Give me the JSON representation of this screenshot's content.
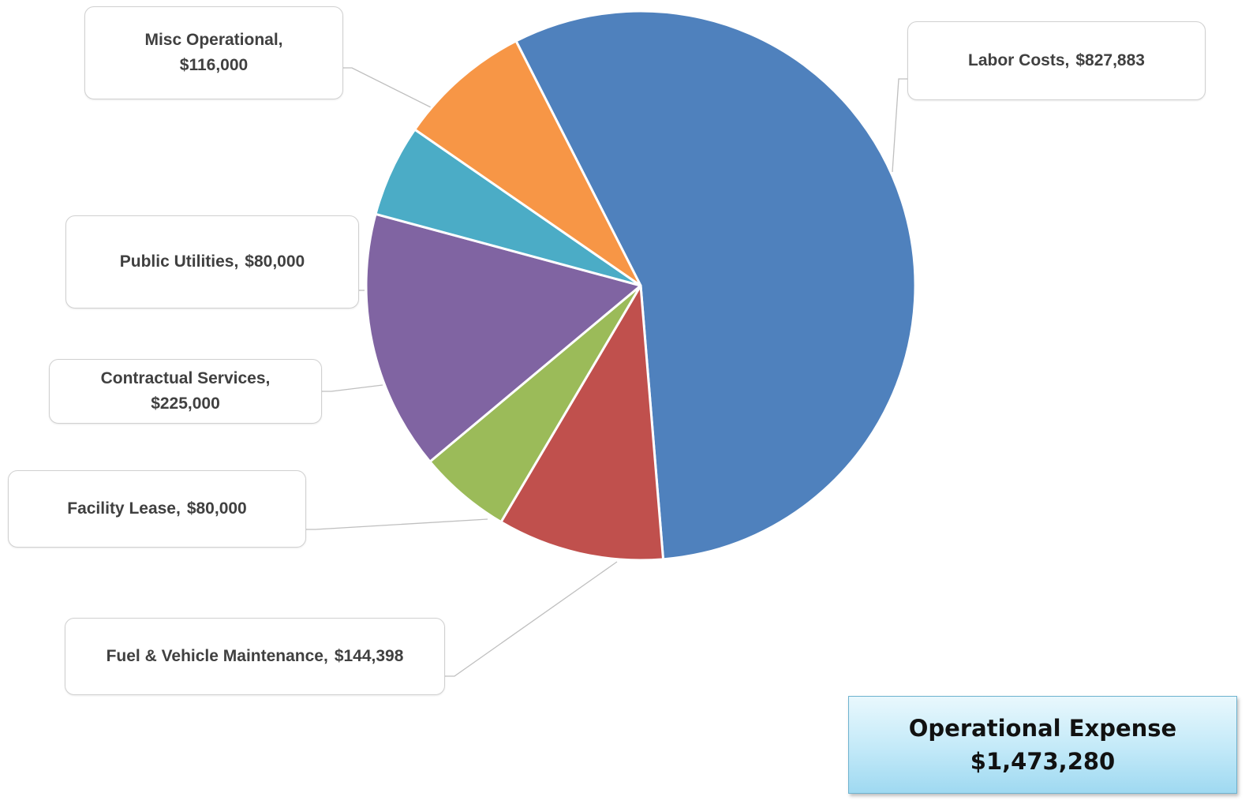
{
  "chart_data": {
    "type": "pie",
    "title": "",
    "slices": [
      {
        "label": "Labor Costs",
        "value": 827883,
        "display": "$827,883",
        "color": "#4f81bd"
      },
      {
        "label": "Fuel & Vehicle Maintenance",
        "value": 144398,
        "display": "$144,398",
        "color": "#c0504d"
      },
      {
        "label": "Facility Lease",
        "value": 80000,
        "display": "$80,000",
        "color": "#9bbb59"
      },
      {
        "label": "Contractual Services",
        "value": 225000,
        "display": "$225,000",
        "color": "#8064a2"
      },
      {
        "label": "Public Utilities",
        "value": 80000,
        "display": "$80,000",
        "color": "#4bacc6"
      },
      {
        "label": "Misc Operational",
        "value": 116000,
        "display": "$116,000",
        "color": "#f79646"
      }
    ]
  },
  "callouts": {
    "labor": {
      "name": "Labor Costs,",
      "value": "$827,883"
    },
    "misc": {
      "name": "Misc Operational,",
      "value": "$116,000"
    },
    "utility": {
      "name": "Public Utilities,",
      "value": "$80,000"
    },
    "contract": {
      "name": "Contractual Services,",
      "value": "$225,000"
    },
    "facility": {
      "name": "Facility Lease,",
      "value": "$80,000"
    },
    "fuel": {
      "name": "Fuel & Vehicle Maintenance,",
      "value": "$144,398"
    }
  },
  "total_box": {
    "title": "Operational  Expense",
    "amount": "$1,473,280"
  }
}
